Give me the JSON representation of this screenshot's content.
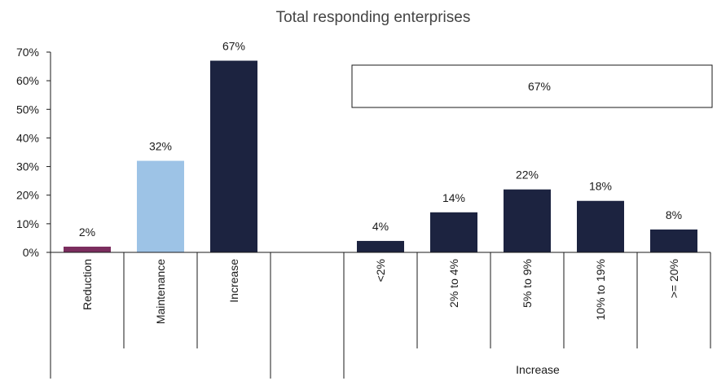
{
  "chart_data": {
    "type": "bar",
    "title": "Total responding enterprises",
    "ylim": [
      0,
      70
    ],
    "yticks": [
      0,
      10,
      20,
      30,
      40,
      50,
      60,
      70
    ],
    "ytick_labels": [
      "0%",
      "10%",
      "20%",
      "30%",
      "40%",
      "50%",
      "60%",
      "70%"
    ],
    "grid": false,
    "legend": "none",
    "categories": [
      "Reduction",
      "Maintenance",
      "Increase",
      "",
      "<2%",
      "2% to 4%",
      "5% to 9%",
      "10% to 19%",
      ">= 20%"
    ],
    "values": [
      2,
      32,
      67,
      null,
      4,
      14,
      22,
      18,
      8
    ],
    "data_labels": [
      "2%",
      "32%",
      "67%",
      "",
      "4%",
      "14%",
      "22%",
      "18%",
      "8%"
    ],
    "bar_colors": [
      "#7b2d5e",
      "#9dc3e6",
      "#1c2340",
      null,
      "#1c2340",
      "#1c2340",
      "#1c2340",
      "#1c2340",
      "#1c2340"
    ],
    "group_label": "Increase",
    "group_total_label": "67%"
  }
}
